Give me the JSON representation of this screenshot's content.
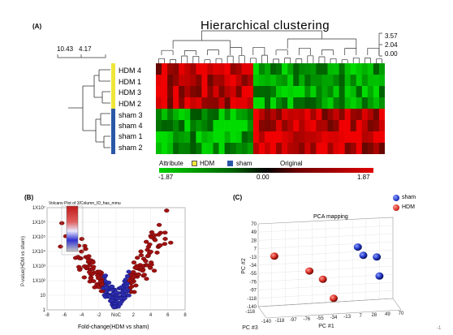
{
  "colors": {
    "hdm_group": "#f0e63a",
    "sham_group": "#2b58a6",
    "heat_high": "#d40000",
    "heat_low": "#00c000",
    "heat_mid": "#000000",
    "sham_point": "#1f36c4",
    "hdm_point": "#d42a20"
  },
  "chart_data": [
    {
      "panel": "(A)",
      "type": "heatmap",
      "title": "Hierarchical clustering",
      "row_labels": [
        "HDM 4",
        "HDM 1",
        "HDM 3",
        "HDM 2",
        "sham 3",
        "sham 4",
        "sham 1",
        "sham 2"
      ],
      "row_groups": [
        "HDM",
        "HDM",
        "HDM",
        "HDM",
        "sham",
        "sham",
        "sham",
        "sham"
      ],
      "col_tree_scale": [
        "3.57",
        "2.04",
        "0.00"
      ],
      "row_tree_scale": [
        "10.43",
        "4.17"
      ],
      "legend": {
        "attribute_label": "Attribute",
        "groups": [
          {
            "name": "HDM",
            "color": "#f0e63a"
          },
          {
            "name": "sham",
            "color": "#2b58a6"
          }
        ],
        "original_label": "Original",
        "color_min": "-1.87",
        "color_mid": "0.00",
        "color_max": "1.87",
        "range": [
          -1.87,
          1.87
        ]
      }
    },
    {
      "panel": "(B)",
      "type": "scatter",
      "title": "Volcano Plot of 3/Column_ID_has_mmu",
      "xlabel": "Fold-change(HDM vs sham)",
      "x_ticks": [
        "-8",
        "-6",
        "-4",
        "-2",
        "NoC",
        "2",
        "4",
        "6",
        "8"
      ],
      "y_ticks": [
        "1",
        "10",
        "1X10²",
        "1X10³",
        "1X10⁴",
        "1X10⁵",
        "1X10⁶",
        "1X10⁷"
      ],
      "xlim": [
        -8,
        8
      ],
      "ylim": [
        1,
        10000000
      ],
      "y_log_scale": true
    },
    {
      "panel": "(C)",
      "type": "scatter",
      "title": "PCA mapping",
      "axis_labels": [
        "PC #1",
        "PC #2",
        "PC #3"
      ],
      "pc1_ticks": [
        "-140",
        "-118",
        "-97",
        "-76",
        "-55",
        "-34",
        "-13",
        "7",
        "28",
        "49",
        "70"
      ],
      "pc2_ticks": [
        "70",
        "49",
        "28",
        "7",
        "-13",
        "-34",
        "-55",
        "-76",
        "-97",
        "-118",
        "-140"
      ],
      "pc3_tick_visible": "-118",
      "legend": [
        "sham",
        "HDM"
      ],
      "series": [
        {
          "name": "sham",
          "points": [
            [
              0.74,
              0.72
            ],
            [
              0.78,
              0.62
            ],
            [
              0.88,
              0.6
            ],
            [
              0.9,
              0.37
            ]
          ]
        },
        {
          "name": "HDM",
          "points": [
            [
              0.12,
              0.61
            ],
            [
              0.38,
              0.43
            ],
            [
              0.48,
              0.33
            ],
            [
              0.56,
              0.1
            ]
          ]
        }
      ]
    }
  ],
  "page_mark": "-1"
}
